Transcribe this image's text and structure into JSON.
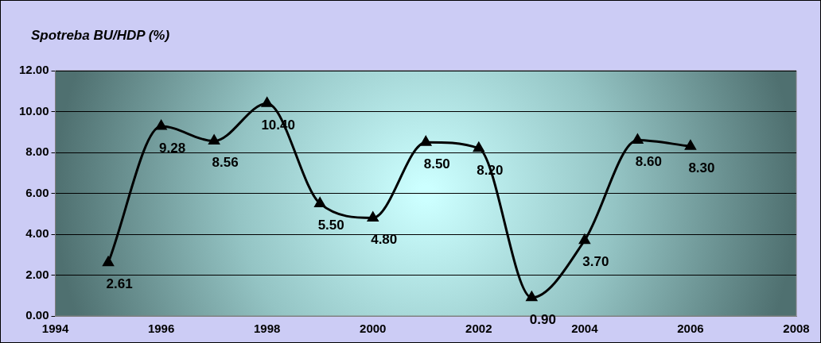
{
  "chart_data": {
    "type": "line",
    "title": "Spotreba BU/HDP (%)",
    "x": [
      1995,
      1996,
      1997,
      1998,
      1999,
      2000,
      2001,
      2002,
      2003,
      2004,
      2005,
      2006
    ],
    "series": [
      {
        "color": "#000000",
        "values": [
          2.61,
          9.28,
          8.56,
          10.4,
          5.5,
          4.8,
          8.5,
          8.2,
          0.9,
          3.7,
          8.6,
          8.3
        ],
        "value_labels": [
          "2.61",
          "9.28",
          "8.56",
          "10.40",
          "5.50",
          "4.80",
          "8.50",
          "8.20",
          "0.90",
          "3.70",
          "8.60",
          "8.30"
        ]
      }
    ],
    "xlim": [
      1994,
      2008
    ],
    "xticks": [
      1994,
      1996,
      1998,
      2000,
      2002,
      2004,
      2006,
      2008
    ],
    "ylim": [
      0,
      12
    ],
    "yticks": [
      {
        "value": 0,
        "label": "0.00"
      },
      {
        "value": 2,
        "label": "2.00"
      },
      {
        "value": 4,
        "label": "4.00"
      },
      {
        "value": 6,
        "label": "6.00"
      },
      {
        "value": 8,
        "label": "8.00"
      },
      {
        "value": 10,
        "label": "10.00"
      },
      {
        "value": 12,
        "label": "12.00"
      }
    ],
    "grid": "y",
    "legend": false,
    "marker": "triangle",
    "line_style": "solid"
  }
}
